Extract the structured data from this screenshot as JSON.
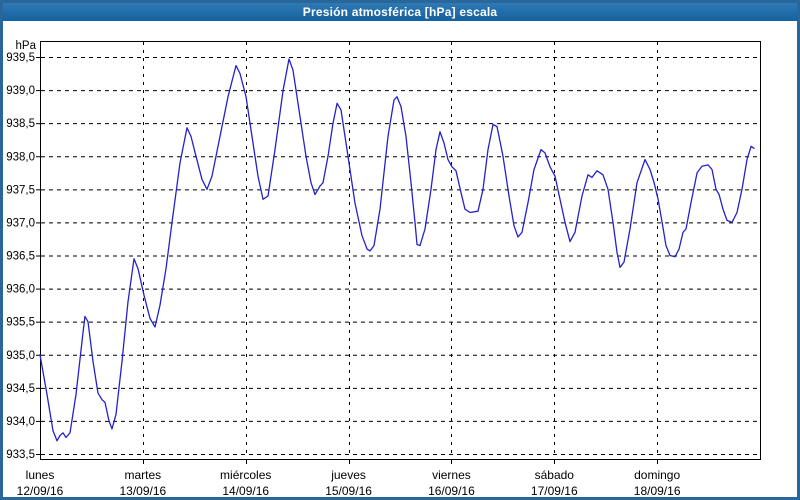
{
  "header": {
    "title": "Presión atmosférica [hPa] escala"
  },
  "colors": {
    "titlebar_top": "#2f7ab5",
    "titlebar_bottom": "#15619f",
    "frame": "#29679b",
    "line": "#2222cc",
    "grid": "#000000",
    "background": "#ffffff",
    "title_text": "#ffffff"
  },
  "chart_data": {
    "type": "line",
    "title": "Presión atmosférica [hPa] escala",
    "ylabel": "hPa",
    "grid": "dashed",
    "legend": "none",
    "y_axis": {
      "min": 933.5,
      "max": 939.5,
      "step": 0.5
    },
    "y_ticks": [
      {
        "label": "939,5",
        "value": 939.5
      },
      {
        "label": "939,0",
        "value": 939.0
      },
      {
        "label": "938,5",
        "value": 938.5
      },
      {
        "label": "938,0",
        "value": 938.0
      },
      {
        "label": "937,5",
        "value": 937.5
      },
      {
        "label": "937,0",
        "value": 937.0
      },
      {
        "label": "936,5",
        "value": 936.5
      },
      {
        "label": "936,0",
        "value": 936.0
      },
      {
        "label": "935,5",
        "value": 935.5
      },
      {
        "label": "935,0",
        "value": 935.0
      },
      {
        "label": "934,5",
        "value": 934.5
      },
      {
        "label": "934,0",
        "value": 934.0
      },
      {
        "label": "933,5",
        "value": 933.5
      }
    ],
    "x_axis": {
      "min_day": 0,
      "max_day": 7
    },
    "x_categories": [
      {
        "day": "lunes",
        "date": "12/09/16",
        "pos": 0
      },
      {
        "day": "martes",
        "date": "13/09/16",
        "pos": 1
      },
      {
        "day": "miércoles",
        "date": "14/09/16",
        "pos": 2
      },
      {
        "day": "jueves",
        "date": "15/09/16",
        "pos": 3
      },
      {
        "day": "viernes",
        "date": "16/09/16",
        "pos": 4
      },
      {
        "day": "sábado",
        "date": "17/09/16",
        "pos": 5
      },
      {
        "day": "domingo",
        "date": "18/09/16",
        "pos": 6
      }
    ],
    "series": [
      {
        "name": "presión atmosférica",
        "color": "#2222cc",
        "points": [
          [
            0.0,
            935.0
          ],
          [
            0.068,
            934.4
          ],
          [
            0.126,
            933.85
          ],
          [
            0.165,
            933.7
          ],
          [
            0.194,
            933.78
          ],
          [
            0.224,
            933.82
          ],
          [
            0.253,
            933.75
          ],
          [
            0.292,
            933.82
          ],
          [
            0.35,
            934.4
          ],
          [
            0.408,
            935.2
          ],
          [
            0.437,
            935.58
          ],
          [
            0.467,
            935.5
          ],
          [
            0.515,
            934.9
          ],
          [
            0.564,
            934.42
          ],
          [
            0.603,
            934.32
          ],
          [
            0.632,
            934.28
          ],
          [
            0.671,
            934.0
          ],
          [
            0.7,
            933.88
          ],
          [
            0.739,
            934.1
          ],
          [
            0.797,
            934.9
          ],
          [
            0.856,
            935.8
          ],
          [
            0.914,
            936.45
          ],
          [
            0.953,
            936.3
          ],
          [
            1.011,
            935.9
          ],
          [
            1.069,
            935.55
          ],
          [
            1.118,
            935.42
          ],
          [
            1.167,
            935.75
          ],
          [
            1.225,
            936.3
          ],
          [
            1.283,
            937.0
          ],
          [
            1.361,
            937.9
          ],
          [
            1.429,
            938.43
          ],
          [
            1.468,
            938.3
          ],
          [
            1.517,
            938.0
          ],
          [
            1.575,
            937.65
          ],
          [
            1.624,
            937.5
          ],
          [
            1.672,
            937.7
          ],
          [
            1.75,
            938.3
          ],
          [
            1.828,
            938.9
          ],
          [
            1.906,
            939.37
          ],
          [
            1.944,
            939.25
          ],
          [
            2.003,
            938.9
          ],
          [
            2.061,
            938.3
          ],
          [
            2.119,
            937.7
          ],
          [
            2.168,
            937.35
          ],
          [
            2.217,
            937.4
          ],
          [
            2.285,
            938.1
          ],
          [
            2.363,
            939.0
          ],
          [
            2.421,
            939.47
          ],
          [
            2.46,
            939.3
          ],
          [
            2.518,
            938.7
          ],
          [
            2.586,
            938.0
          ],
          [
            2.635,
            937.6
          ],
          [
            2.674,
            937.42
          ],
          [
            2.722,
            937.55
          ],
          [
            2.751,
            937.6
          ],
          [
            2.8,
            938.0
          ],
          [
            2.849,
            938.5
          ],
          [
            2.888,
            938.8
          ],
          [
            2.926,
            938.7
          ],
          [
            2.994,
            938.0
          ],
          [
            3.062,
            937.3
          ],
          [
            3.131,
            936.8
          ],
          [
            3.179,
            936.6
          ],
          [
            3.208,
            936.57
          ],
          [
            3.247,
            936.65
          ],
          [
            3.306,
            937.2
          ],
          [
            3.383,
            938.3
          ],
          [
            3.442,
            938.85
          ],
          [
            3.471,
            938.9
          ],
          [
            3.51,
            938.75
          ],
          [
            3.558,
            938.3
          ],
          [
            3.607,
            937.6
          ],
          [
            3.646,
            937.0
          ],
          [
            3.665,
            936.67
          ],
          [
            3.694,
            936.65
          ],
          [
            3.743,
            936.9
          ],
          [
            3.801,
            937.5
          ],
          [
            3.85,
            938.1
          ],
          [
            3.889,
            938.37
          ],
          [
            3.928,
            938.2
          ],
          [
            3.967,
            937.95
          ],
          [
            4.006,
            937.84
          ],
          [
            4.044,
            937.78
          ],
          [
            4.093,
            937.45
          ],
          [
            4.132,
            937.2
          ],
          [
            4.181,
            937.15
          ],
          [
            4.258,
            937.17
          ],
          [
            4.307,
            937.5
          ],
          [
            4.356,
            938.1
          ],
          [
            4.404,
            938.48
          ],
          [
            4.443,
            938.45
          ],
          [
            4.501,
            938.0
          ],
          [
            4.56,
            937.4
          ],
          [
            4.608,
            936.95
          ],
          [
            4.647,
            936.78
          ],
          [
            4.686,
            936.85
          ],
          [
            4.744,
            937.3
          ],
          [
            4.803,
            937.8
          ],
          [
            4.871,
            938.1
          ],
          [
            4.91,
            938.05
          ],
          [
            4.958,
            937.84
          ],
          [
            5.007,
            937.7
          ],
          [
            5.056,
            937.35
          ],
          [
            5.104,
            937.0
          ],
          [
            5.153,
            936.71
          ],
          [
            5.201,
            936.85
          ],
          [
            5.269,
            937.4
          ],
          [
            5.328,
            937.72
          ],
          [
            5.367,
            937.68
          ],
          [
            5.415,
            937.78
          ],
          [
            5.474,
            937.72
          ],
          [
            5.522,
            937.5
          ],
          [
            5.571,
            937.0
          ],
          [
            5.61,
            936.55
          ],
          [
            5.639,
            936.32
          ],
          [
            5.678,
            936.4
          ],
          [
            5.736,
            936.9
          ],
          [
            5.804,
            937.6
          ],
          [
            5.882,
            937.95
          ],
          [
            5.931,
            937.8
          ],
          [
            5.97,
            937.6
          ],
          [
            6.009,
            937.35
          ],
          [
            6.048,
            937.0
          ],
          [
            6.086,
            936.65
          ],
          [
            6.125,
            936.5
          ],
          [
            6.174,
            936.48
          ],
          [
            6.213,
            936.6
          ],
          [
            6.251,
            936.85
          ],
          [
            6.281,
            936.9
          ],
          [
            6.329,
            937.3
          ],
          [
            6.388,
            937.75
          ],
          [
            6.436,
            937.85
          ],
          [
            6.495,
            937.87
          ],
          [
            6.533,
            937.8
          ],
          [
            6.572,
            937.5
          ],
          [
            6.602,
            937.42
          ],
          [
            6.64,
            937.2
          ],
          [
            6.679,
            937.03
          ],
          [
            6.728,
            937.0
          ],
          [
            6.776,
            937.15
          ],
          [
            6.825,
            937.5
          ],
          [
            6.874,
            937.95
          ],
          [
            6.913,
            938.15
          ],
          [
            6.942,
            938.12
          ]
        ]
      }
    ]
  }
}
